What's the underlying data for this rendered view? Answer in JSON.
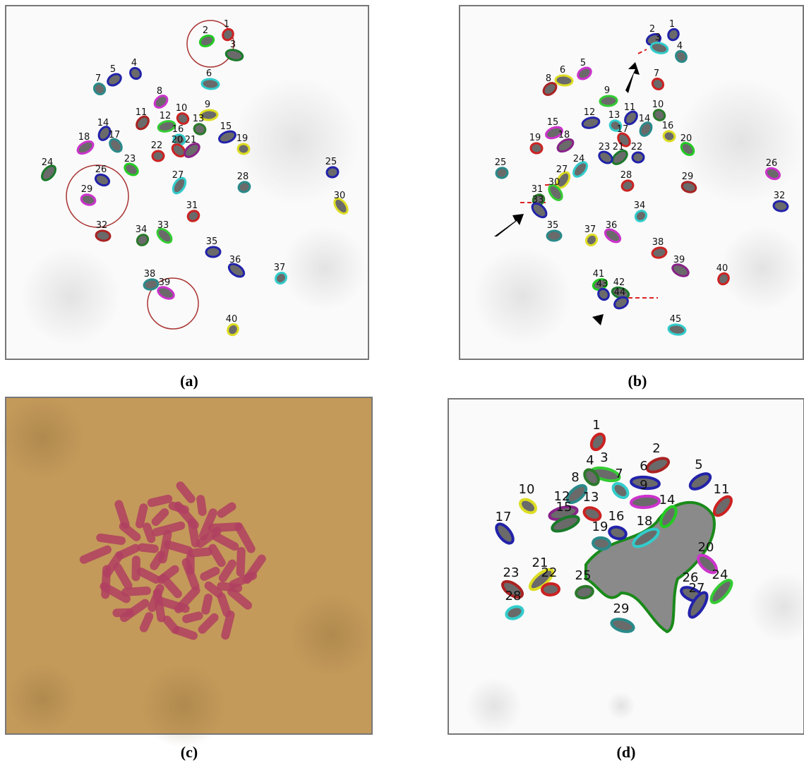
{
  "panels": [
    {
      "caption": "(a)",
      "labels": [
        "1",
        "2",
        "3",
        "4",
        "5",
        "6",
        "7",
        "8",
        "9",
        "10",
        "11",
        "12",
        "13",
        "14",
        "15",
        "16",
        "17",
        "18",
        "19",
        "20",
        "21",
        "22",
        "23",
        "24",
        "25",
        "26",
        "27",
        "28",
        "29",
        "30",
        "31",
        "32",
        "33",
        "34",
        "35",
        "36",
        "37",
        "38",
        "39",
        "40"
      ]
    },
    {
      "caption": "(b)",
      "labels": [
        "1",
        "2",
        "3",
        "4",
        "5",
        "6",
        "7",
        "8",
        "9",
        "10",
        "11",
        "12",
        "13",
        "14",
        "15",
        "16",
        "17",
        "18",
        "19",
        "20",
        "21",
        "22",
        "23",
        "24",
        "25",
        "26",
        "27",
        "28",
        "29",
        "30",
        "31",
        "32",
        "33",
        "34",
        "35",
        "36",
        "37",
        "38",
        "39",
        "40",
        "41",
        "42",
        "43",
        "44",
        "45"
      ]
    },
    {
      "caption": "(c)",
      "labels": []
    },
    {
      "caption": "(d)",
      "labels": [
        "1",
        "2",
        "3",
        "4",
        "5",
        "6",
        "7",
        "8",
        "9",
        "10",
        "11",
        "12",
        "13",
        "14",
        "15",
        "16",
        "17",
        "18",
        "19",
        "20",
        "21",
        "22",
        "23",
        "24",
        "25",
        "26",
        "27",
        "28",
        "29"
      ]
    }
  ]
}
